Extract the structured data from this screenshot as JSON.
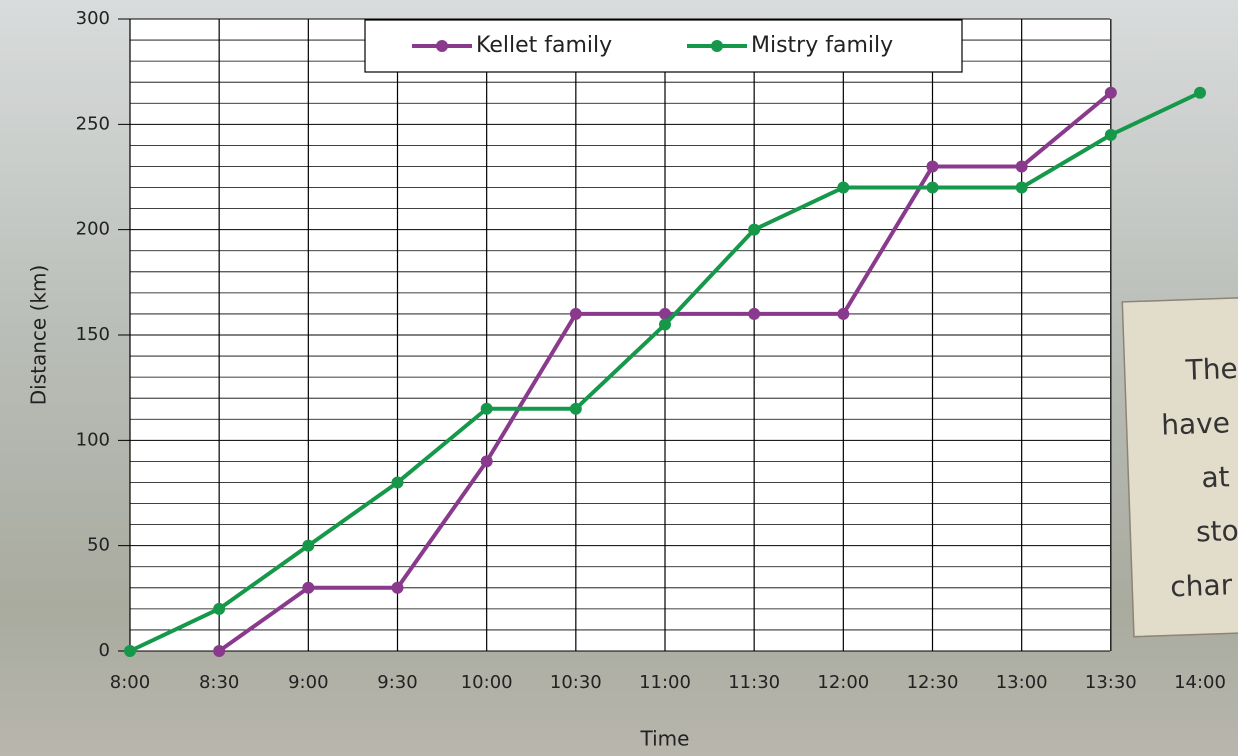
{
  "chart_data": {
    "type": "line",
    "x_label": "Time",
    "y_label": "Distance (km)",
    "categories": [
      "8:00",
      "8:30",
      "9:00",
      "9:30",
      "10:00",
      "10:30",
      "11:00",
      "11:30",
      "12:00",
      "12:30",
      "13:00",
      "13:30",
      "14:00"
    ],
    "series": [
      {
        "name": "Kellet family",
        "color": "#8a3a8c",
        "values": [
          null,
          0,
          30,
          30,
          90,
          160,
          160,
          160,
          160,
          230,
          230,
          265,
          null
        ]
      },
      {
        "name": "Mistry family",
        "color": "#16984a",
        "values": [
          0,
          20,
          50,
          80,
          115,
          115,
          155,
          200,
          220,
          220,
          220,
          245,
          265
        ]
      }
    ],
    "ylim": [
      0,
      300
    ],
    "yticks": [
      0,
      50,
      100,
      150,
      200,
      250,
      300
    ],
    "y_minor_ticks": [
      10,
      20,
      30,
      40,
      60,
      70,
      80,
      90,
      110,
      120,
      130,
      140,
      160,
      170,
      180,
      190,
      210,
      220,
      230,
      240,
      260,
      270,
      280,
      290
    ],
    "grid": true,
    "legend": "top",
    "note_lines": [
      "The",
      "have",
      "at",
      "sto",
      "char"
    ]
  }
}
